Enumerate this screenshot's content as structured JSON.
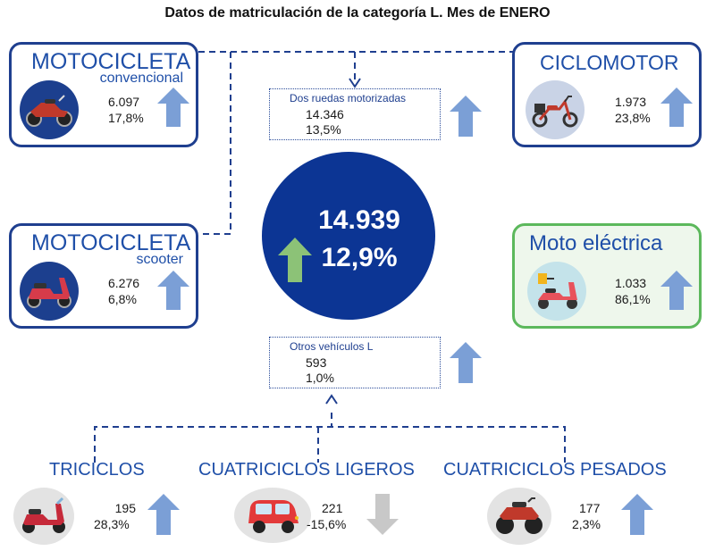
{
  "title": "Datos de matriculación de la categoría L. Mes de ENERO",
  "center": {
    "total": "14.939",
    "pct": "12,9%",
    "trend": "up"
  },
  "cards": {
    "moto_convencional": {
      "title": "MOTOCICLETA",
      "subtitle": "convencional",
      "value": "6.097",
      "pct": "17,8%",
      "trend": "up",
      "icon": "motorcycle-icon"
    },
    "moto_scooter": {
      "title": "MOTOCICLETA",
      "subtitle": "scooter",
      "value": "6.276",
      "pct": "6,8%",
      "trend": "up",
      "icon": "scooter-icon"
    },
    "ciclomotor": {
      "title": "CICLOMOTOR",
      "value": "1.973",
      "pct": "23,8%",
      "trend": "up",
      "icon": "moped-icon"
    },
    "moto_electrica": {
      "title": "Moto eléctrica",
      "value": "1.033",
      "pct": "86,1%",
      "trend": "up",
      "icon": "electric-scooter-icon"
    }
  },
  "dos_ruedas": {
    "label": "Dos ruedas motorizadas",
    "value": "14.346",
    "pct": "13,5%",
    "trend": "up"
  },
  "otros": {
    "label": "Otros vehículos L",
    "value": "593",
    "pct": "1,0%",
    "trend": "up"
  },
  "bottom": {
    "triciclos": {
      "label": "TRICICLOS",
      "value": "195",
      "pct": "28,3%",
      "trend": "up",
      "icon": "tricycle-icon"
    },
    "cuatriciclos_ligeros": {
      "label": "CUATRICICLOS LIGEROS",
      "value": "221",
      "pct": "-15,6%",
      "trend": "down",
      "icon": "microcar-icon"
    },
    "cuatriciclos_pesados": {
      "label": "CUATRICICLOS PESADOS",
      "value": "177",
      "pct": "2,3%",
      "trend": "up",
      "icon": "quad-icon"
    }
  },
  "colors": {
    "navy": "#0c3594",
    "card_border": "#1f3f8f",
    "arrow_up": "#7b9fd6",
    "arrow_down": "#c8c8c8",
    "arrow_center": "#8cc277",
    "electric_border": "#5cb85c"
  }
}
